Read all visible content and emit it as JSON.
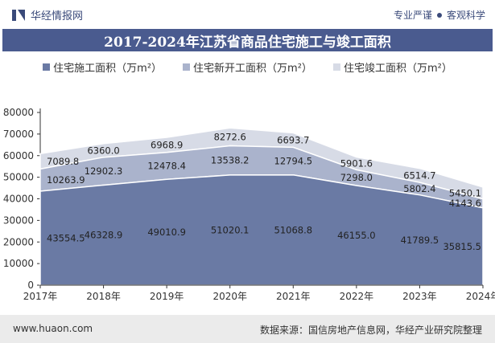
{
  "header": {
    "brand": "华经情报网",
    "tag1": "专业严谨",
    "tag2": "客观科学"
  },
  "colors": {
    "title_bg": "#4a5b8f",
    "series1": "#6a7aa4",
    "series2": "#aab3cc",
    "series3": "#d7dbe6"
  },
  "chart_data": {
    "type": "area",
    "stacked": true,
    "title": "2017-2024年江苏省商品住宅施工与竣工面积",
    "categories": [
      "2017年",
      "2018年",
      "2019年",
      "2020年",
      "2021年",
      "2022年",
      "2023年",
      "2024年"
    ],
    "ylim": [
      0,
      80000
    ],
    "yticks": [
      0,
      10000,
      20000,
      30000,
      40000,
      50000,
      60000,
      70000,
      80000
    ],
    "legend_position": "top",
    "series": [
      {
        "name": "住宅施工面积（万m²）",
        "values": [
          43554.5,
          46328.9,
          49010.9,
          51020.1,
          51068.8,
          46155.0,
          41789.5,
          35815.5
        ],
        "labels": [
          "43554.5",
          "46328.9",
          "49010.9",
          "51020.1",
          "51068.8",
          "46155.0",
          "41789.5",
          "35815.5"
        ]
      },
      {
        "name": "住宅新开工面积（万m²）",
        "values": [
          10263.9,
          12902.3,
          12478.4,
          13538.2,
          12794.5,
          7298.0,
          5802.4,
          4143.6
        ],
        "labels": [
          "10263.9",
          "12902.3",
          "12478.4",
          "13538.2",
          "12794.5",
          "7298.0",
          "5802.4",
          "4143.6"
        ]
      },
      {
        "name": "住宅竣工面积（万m²）",
        "values": [
          7089.8,
          6360.0,
          6968.9,
          8272.6,
          6693.7,
          5901.6,
          6514.7,
          5450.1
        ],
        "labels": [
          "7089.8",
          "6360.0",
          "6968.9",
          "8272.6",
          "6693.7",
          "5901.6",
          "6514.7",
          "5450.1"
        ]
      }
    ]
  },
  "footer": {
    "website": "www.huaon.com",
    "source": "数据来源：国信房地产信息网，华经产业研究院整理"
  }
}
